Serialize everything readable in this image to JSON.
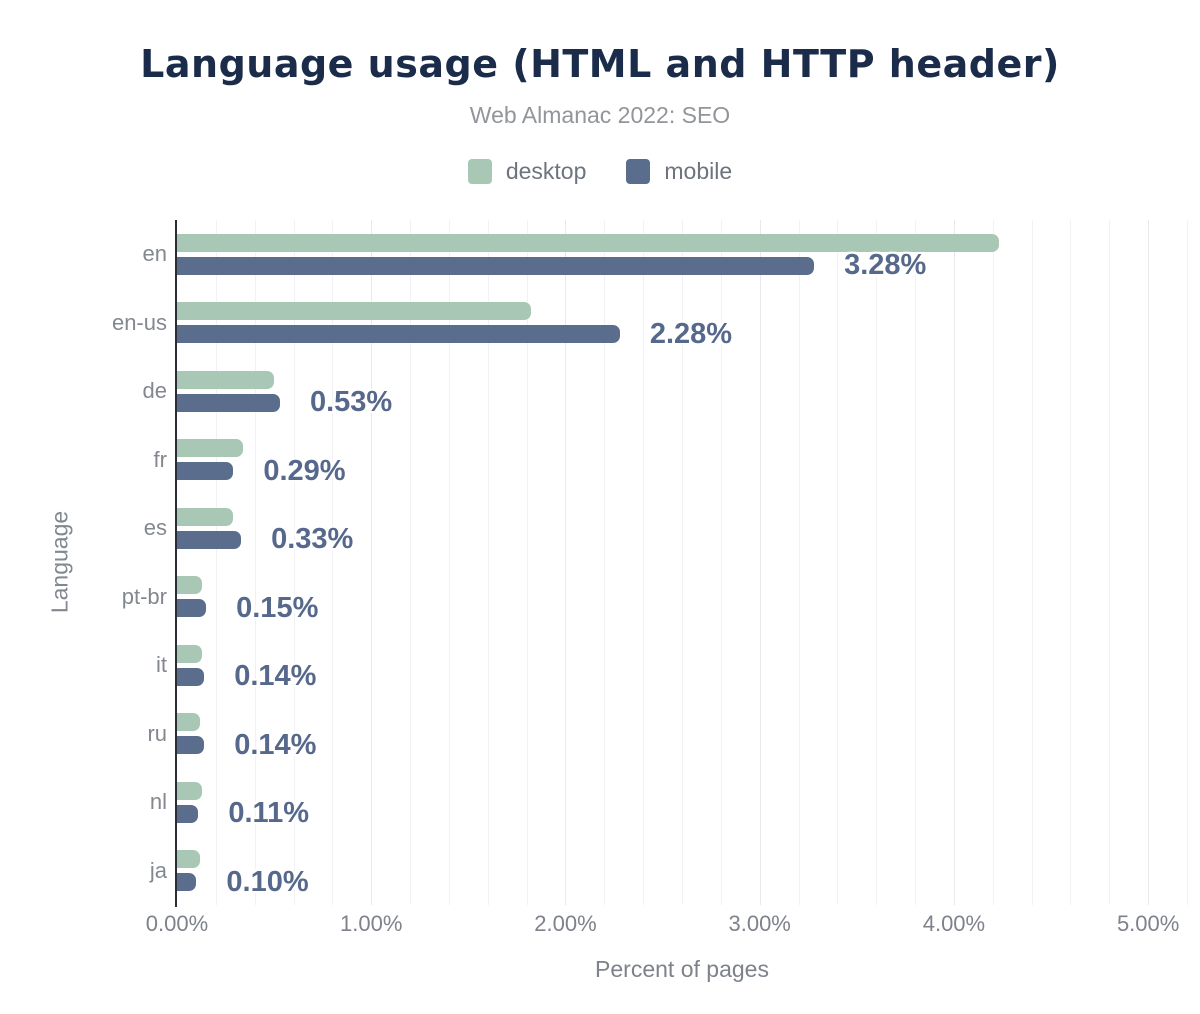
{
  "header": {
    "title": "Language usage (HTML and HTTP header)",
    "subtitle": "Web Almanac 2022: SEO"
  },
  "legend": [
    {
      "label": "desktop",
      "color": "#a8c7b4"
    },
    {
      "label": "mobile",
      "color": "#5b6d8c"
    }
  ],
  "colors": {
    "title": "#1b2b4a",
    "subtitle": "#929599",
    "desktop_bar": "#a8c7b4",
    "mobile_bar": "#5b6d8c",
    "value_label": "#56688b",
    "axis_line": "#2a2d33",
    "gridline": "#f2f2f4",
    "tick_text": "#7d828b",
    "background": "#ffffff"
  },
  "chart_data": {
    "type": "bar",
    "orientation": "horizontal",
    "title": "Language usage (HTML and HTTP header)",
    "subtitle": "Web Almanac 2022: SEO",
    "xlabel": "Percent of pages",
    "ylabel": "Language",
    "legend_position": "top",
    "grid": "vertical-minor",
    "grid_minor_step": 0.2,
    "xlim": [
      0,
      5.2
    ],
    "x_ticks": [
      "0.00%",
      "1.00%",
      "2.00%",
      "3.00%",
      "4.00%",
      "5.00%"
    ],
    "x_tick_values": [
      0,
      1,
      2,
      3,
      4,
      5
    ],
    "categories": [
      "en",
      "en-us",
      "de",
      "fr",
      "es",
      "pt-br",
      "it",
      "ru",
      "nl",
      "ja"
    ],
    "series": [
      {
        "name": "desktop",
        "color": "#a8c7b4",
        "values": [
          4.23,
          1.82,
          0.5,
          0.34,
          0.29,
          0.13,
          0.13,
          0.12,
          0.13,
          0.12
        ]
      },
      {
        "name": "mobile",
        "color": "#5b6d8c",
        "values": [
          3.28,
          2.28,
          0.53,
          0.29,
          0.33,
          0.15,
          0.14,
          0.14,
          0.11,
          0.1
        ]
      }
    ],
    "value_labels_series": "mobile",
    "value_labels": [
      "3.28%",
      "2.28%",
      "0.53%",
      "0.29%",
      "0.33%",
      "0.15%",
      "0.14%",
      "0.14%",
      "0.11%",
      "0.10%"
    ]
  }
}
